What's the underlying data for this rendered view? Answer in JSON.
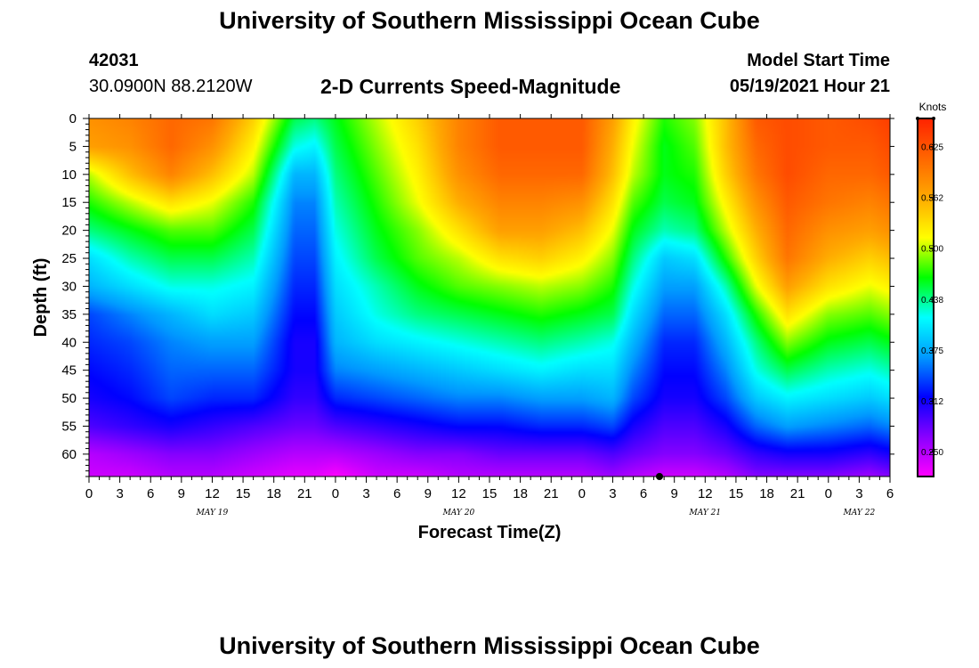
{
  "header": {
    "top_title": "University of Southern Mississippi Ocean Cube",
    "bottom_title": "University of Southern Mississippi Ocean Cube",
    "station_id": "42031",
    "location": "30.0900N  88.2120W",
    "subtitle": "2-D Currents Speed-Magnitude",
    "model_start_label": "Model Start Time",
    "model_start_value": "05/19/2021 Hour 21"
  },
  "chart_data": {
    "type": "heatmap",
    "title": "2-D Currents Speed-Magnitude",
    "xlabel": "Forecast Time(Z)",
    "ylabel": "Depth (ft)",
    "x_range_hours": [
      0,
      78
    ],
    "y_range_ft": [
      0,
      64
    ],
    "x_tick_labels": [
      "0",
      "3",
      "6",
      "9",
      "12",
      "15",
      "18",
      "21",
      "0",
      "3",
      "6",
      "9",
      "12",
      "15",
      "18",
      "21",
      "0",
      "3",
      "6",
      "9",
      "12",
      "15",
      "18",
      "21",
      "0",
      "3",
      "6"
    ],
    "day_labels": [
      {
        "text": "MAY 19",
        "hour": 12
      },
      {
        "text": "MAY 20",
        "hour": 36
      },
      {
        "text": "MAY 21",
        "hour": 60
      },
      {
        "text": "MAY 22",
        "hour": 75
      }
    ],
    "y_ticks": [
      0,
      5,
      10,
      15,
      20,
      25,
      30,
      35,
      40,
      45,
      50,
      55,
      60
    ],
    "colorbar": {
      "unit": "Knots",
      "min": 0.22,
      "max": 0.66,
      "tick_labels": [
        "0.250",
        "0.312",
        "0.375",
        "0.438",
        "0.500",
        "0.562",
        "0.625"
      ],
      "tick_values": [
        0.25,
        0.3125,
        0.375,
        0.4375,
        0.5,
        0.5625,
        0.625
      ],
      "colors": [
        "#ff00ff",
        "#8800ff",
        "#0000ff",
        "#0099ff",
        "#00ffff",
        "#00ff00",
        "#ffff00",
        "#ffaa00",
        "#ff6600",
        "#ff2200"
      ]
    },
    "time_hours": [
      0,
      4,
      8,
      12,
      16,
      20,
      22,
      24,
      28,
      32,
      36,
      40,
      44,
      48,
      51,
      53,
      56,
      59,
      62,
      65,
      68,
      72,
      76,
      78
    ],
    "depth_ft": [
      0,
      5,
      10,
      15,
      20,
      25,
      30,
      35,
      40,
      45,
      50,
      55,
      60,
      64
    ],
    "speed_knots": [
      [
        0.58,
        0.57,
        0.5,
        0.47,
        0.44,
        0.4,
        0.38,
        0.34,
        0.33,
        0.32,
        0.31,
        0.29,
        0.25,
        0.24
      ],
      [
        0.59,
        0.58,
        0.55,
        0.5,
        0.46,
        0.43,
        0.4,
        0.36,
        0.34,
        0.33,
        0.32,
        0.3,
        0.26,
        0.24
      ],
      [
        0.61,
        0.61,
        0.59,
        0.53,
        0.48,
        0.45,
        0.42,
        0.38,
        0.36,
        0.35,
        0.34,
        0.31,
        0.27,
        0.25
      ],
      [
        0.6,
        0.58,
        0.55,
        0.51,
        0.48,
        0.45,
        0.42,
        0.4,
        0.37,
        0.35,
        0.33,
        0.3,
        0.27,
        0.25
      ],
      [
        0.54,
        0.52,
        0.5,
        0.47,
        0.45,
        0.43,
        0.41,
        0.39,
        0.37,
        0.35,
        0.33,
        0.29,
        0.26,
        0.24
      ],
      [
        0.45,
        0.42,
        0.38,
        0.36,
        0.35,
        0.34,
        0.33,
        0.32,
        0.31,
        0.31,
        0.3,
        0.28,
        0.25,
        0.23
      ],
      [
        0.44,
        0.41,
        0.38,
        0.36,
        0.35,
        0.34,
        0.33,
        0.32,
        0.31,
        0.31,
        0.3,
        0.28,
        0.25,
        0.23
      ],
      [
        0.46,
        0.45,
        0.44,
        0.43,
        0.42,
        0.41,
        0.4,
        0.39,
        0.38,
        0.36,
        0.33,
        0.29,
        0.25,
        0.22
      ],
      [
        0.5,
        0.49,
        0.48,
        0.47,
        0.46,
        0.45,
        0.43,
        0.42,
        0.4,
        0.37,
        0.34,
        0.3,
        0.26,
        0.24
      ],
      [
        0.54,
        0.53,
        0.52,
        0.51,
        0.49,
        0.48,
        0.46,
        0.44,
        0.41,
        0.38,
        0.35,
        0.31,
        0.27,
        0.24
      ],
      [
        0.59,
        0.59,
        0.58,
        0.56,
        0.53,
        0.5,
        0.48,
        0.45,
        0.42,
        0.39,
        0.36,
        0.32,
        0.27,
        0.25
      ],
      [
        0.62,
        0.62,
        0.61,
        0.59,
        0.57,
        0.53,
        0.49,
        0.46,
        0.43,
        0.4,
        0.36,
        0.32,
        0.28,
        0.25
      ],
      [
        0.62,
        0.62,
        0.61,
        0.59,
        0.57,
        0.54,
        0.5,
        0.47,
        0.44,
        0.41,
        0.37,
        0.33,
        0.28,
        0.25
      ],
      [
        0.62,
        0.62,
        0.61,
        0.58,
        0.55,
        0.52,
        0.49,
        0.46,
        0.43,
        0.4,
        0.37,
        0.33,
        0.28,
        0.25
      ],
      [
        0.57,
        0.56,
        0.55,
        0.53,
        0.51,
        0.49,
        0.47,
        0.45,
        0.42,
        0.4,
        0.38,
        0.34,
        0.29,
        0.26
      ],
      [
        0.52,
        0.51,
        0.5,
        0.48,
        0.46,
        0.44,
        0.42,
        0.4,
        0.38,
        0.36,
        0.34,
        0.31,
        0.28,
        0.25
      ],
      [
        0.47,
        0.46,
        0.46,
        0.45,
        0.43,
        0.39,
        0.37,
        0.35,
        0.33,
        0.32,
        0.31,
        0.29,
        0.27,
        0.24
      ],
      [
        0.49,
        0.48,
        0.47,
        0.46,
        0.44,
        0.4,
        0.37,
        0.35,
        0.33,
        0.32,
        0.31,
        0.29,
        0.27,
        0.24
      ],
      [
        0.55,
        0.55,
        0.54,
        0.52,
        0.5,
        0.47,
        0.43,
        0.4,
        0.38,
        0.36,
        0.34,
        0.31,
        0.28,
        0.25
      ],
      [
        0.62,
        0.61,
        0.6,
        0.58,
        0.56,
        0.54,
        0.51,
        0.47,
        0.44,
        0.42,
        0.39,
        0.35,
        0.3,
        0.27
      ],
      [
        0.63,
        0.63,
        0.63,
        0.62,
        0.61,
        0.6,
        0.57,
        0.53,
        0.49,
        0.45,
        0.41,
        0.37,
        0.31,
        0.27
      ],
      [
        0.62,
        0.62,
        0.61,
        0.6,
        0.58,
        0.56,
        0.53,
        0.49,
        0.46,
        0.43,
        0.4,
        0.36,
        0.31,
        0.27
      ],
      [
        0.63,
        0.62,
        0.61,
        0.59,
        0.57,
        0.54,
        0.51,
        0.48,
        0.45,
        0.42,
        0.39,
        0.35,
        0.3,
        0.26
      ],
      [
        0.64,
        0.63,
        0.62,
        0.6,
        0.58,
        0.55,
        0.52,
        0.49,
        0.46,
        0.43,
        0.4,
        0.36,
        0.31,
        0.27
      ]
    ],
    "grid": false
  }
}
